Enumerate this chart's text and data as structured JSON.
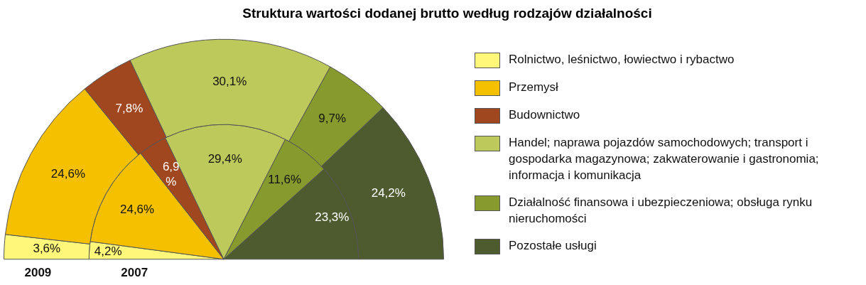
{
  "chart_data": {
    "type": "pie",
    "title": "Struktura wartości dodanej brutto według rodzajów działalności",
    "categories": [
      "Rolnictwo, leśnictwo, łowiectwo i rybactwo",
      "Przemysł",
      "Budownictwo",
      "Handel; naprawa pojazdów samochodowych; transport i gospodarka magazynowa; zakwaterowanie i gastronomia; informacja i komunikacja",
      "Działalność finansowa i ubezpieczeniowa; obsługa rynku nieruchomości",
      "Pozostałe usługi"
    ],
    "colors": [
      "#fff77a",
      "#f5c000",
      "#a0471f",
      "#bdc95a",
      "#869a2e",
      "#4e5b2f"
    ],
    "series": [
      {
        "name": "2009",
        "values": [
          3.6,
          24.6,
          7.8,
          30.1,
          9.7,
          24.2
        ],
        "value_labels": [
          "3,6%",
          "24,6%",
          "7,8%",
          "30,1%",
          "9,7%",
          "24,2%"
        ]
      },
      {
        "name": "2007",
        "values": [
          4.2,
          24.6,
          6.9,
          29.4,
          11.6,
          23.3
        ],
        "value_labels": [
          "4,2%",
          "24,6%",
          "6,9%",
          "29,4%",
          "11,6%",
          "23,3%"
        ]
      }
    ],
    "legend": "right"
  }
}
